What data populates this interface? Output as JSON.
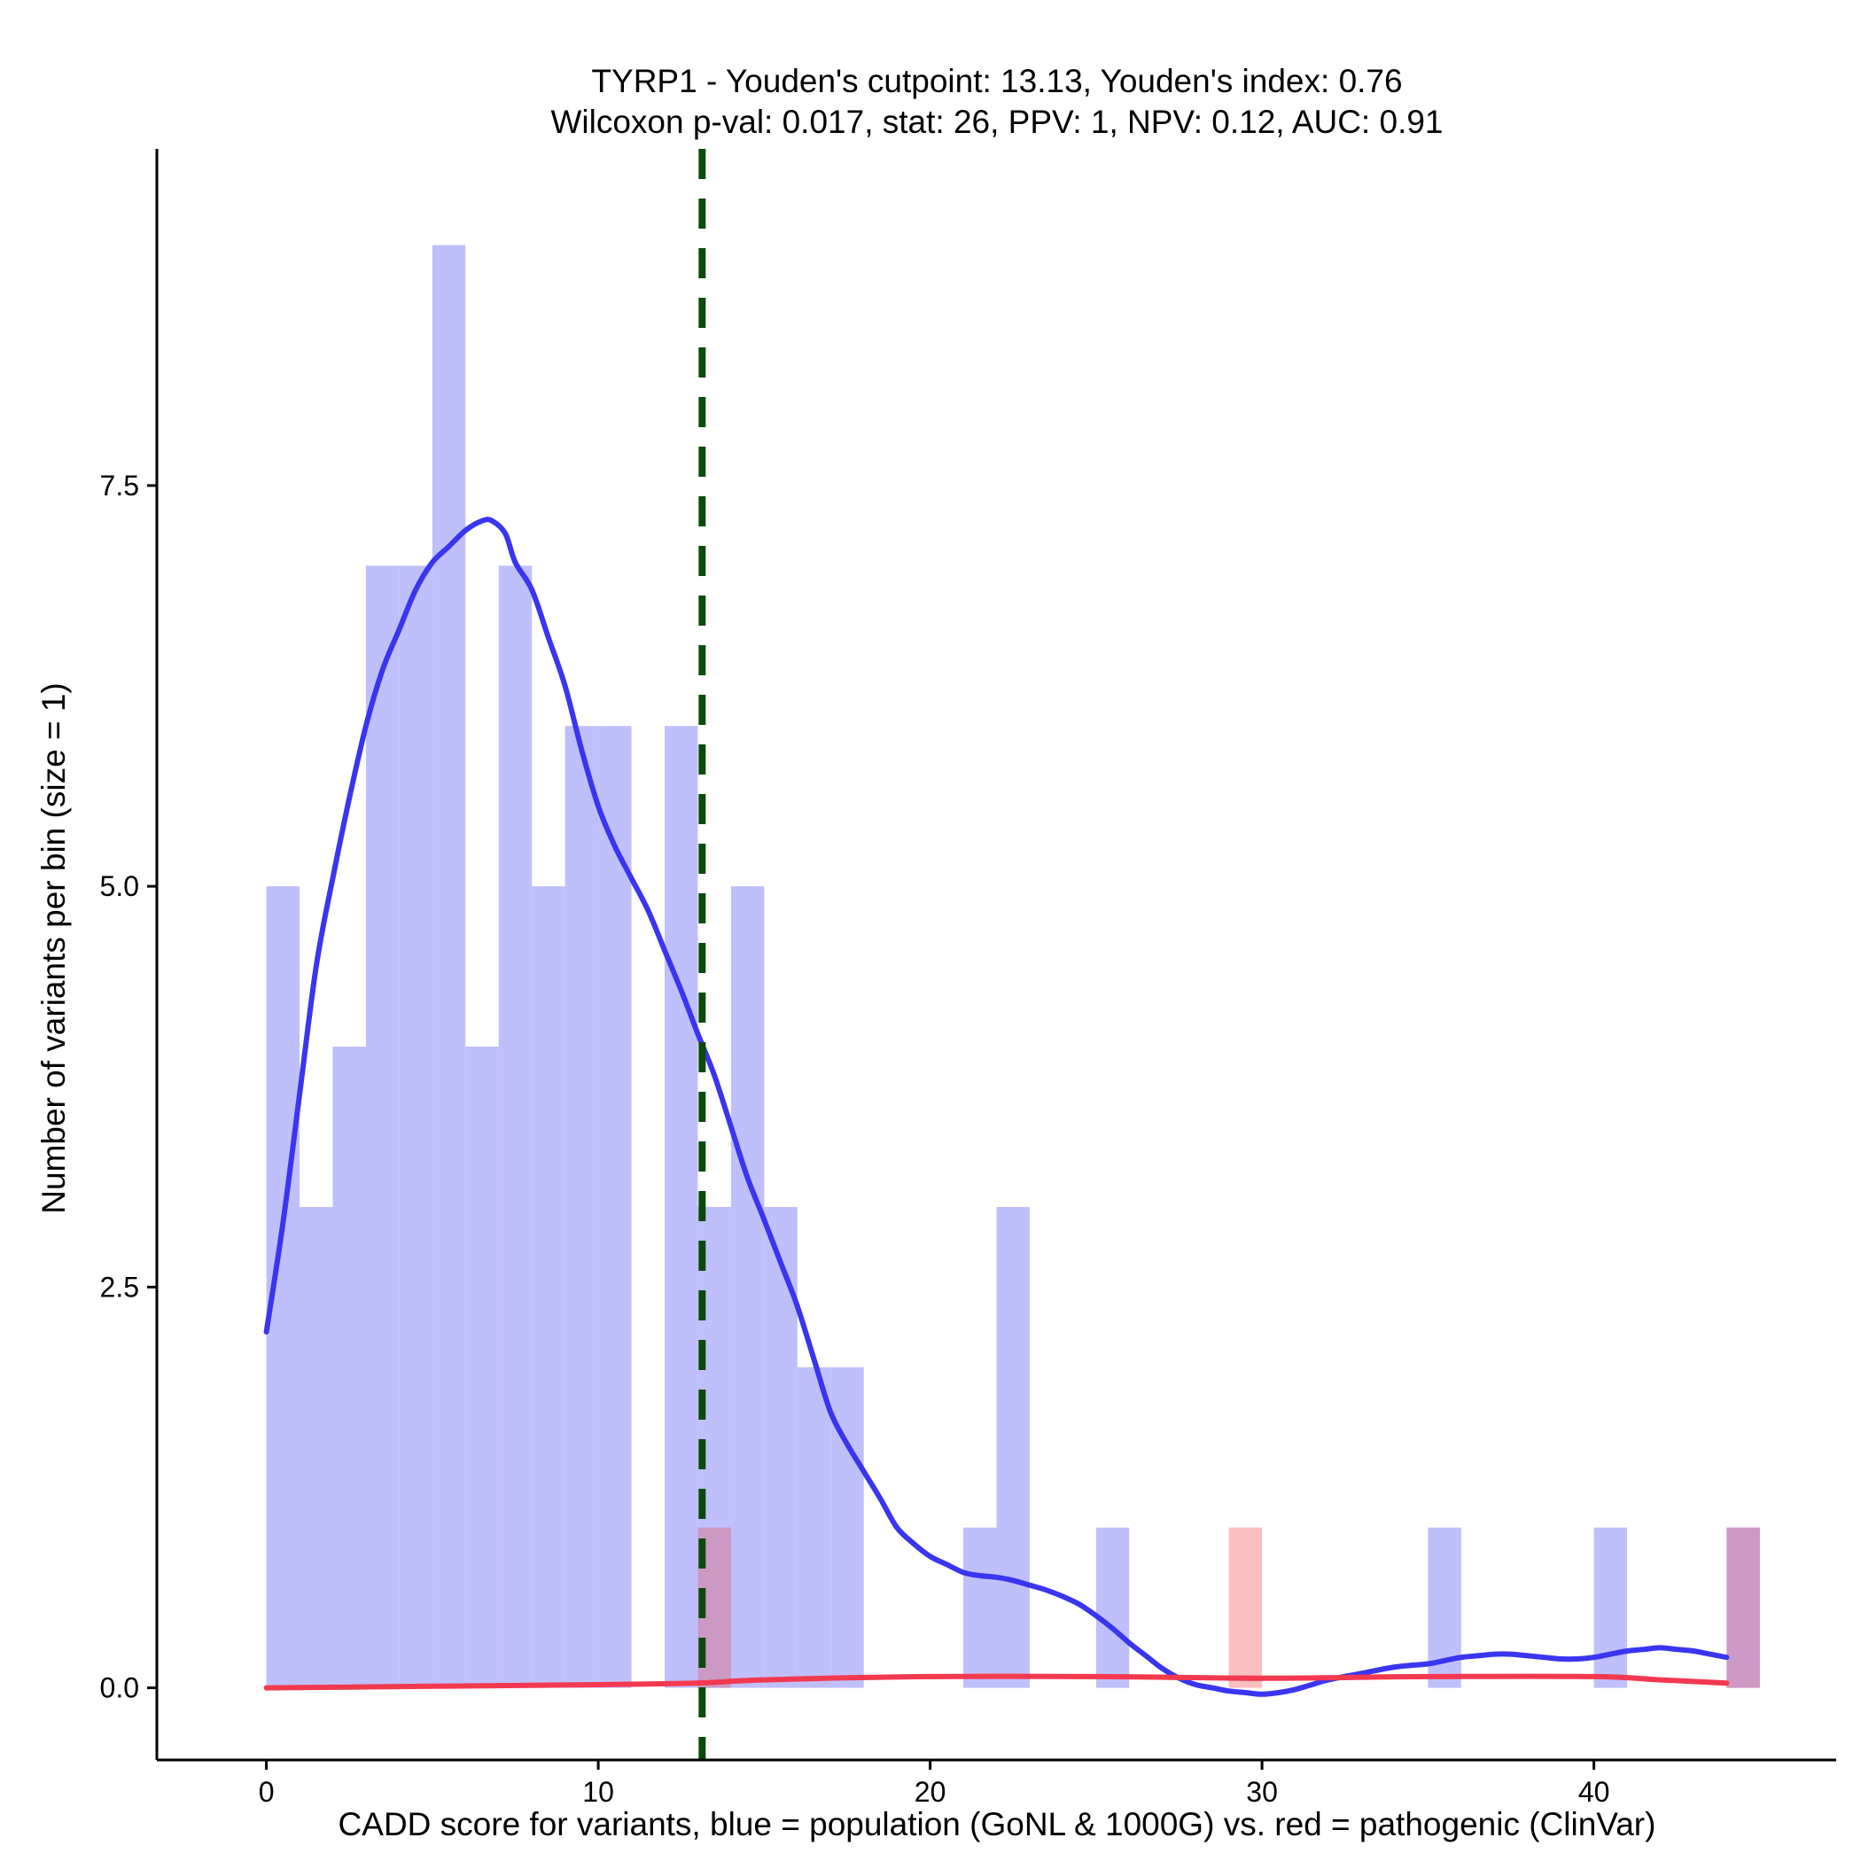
{
  "chart_data": {
    "type": "histogram",
    "title_line1": "TYRP1 - Youden's cutpoint: 13.13, Youden's index: 0.76",
    "title_line2": "Wilcoxon p-val: 0.017, stat: 26, PPV: 1, NPV: 0.12, AUC: 0.91",
    "xlabel": "CADD score for variants, blue = population (GoNL & 1000G) vs. red = pathogenic (ClinVar)",
    "ylabel": "Number of variants per bin (size = 1)",
    "xlim": [
      -3.3,
      47.3
    ],
    "ylim": [
      -0.45,
      9.6
    ],
    "x_ticks": [
      {
        "value": 0,
        "label": "0"
      },
      {
        "value": 10,
        "label": "10"
      },
      {
        "value": 20,
        "label": "20"
      },
      {
        "value": 30,
        "label": "30"
      },
      {
        "value": 40,
        "label": "40"
      }
    ],
    "y_ticks": [
      {
        "value": 0,
        "label": "0.0"
      },
      {
        "value": 2.5,
        "label": "2.5"
      },
      {
        "value": 5,
        "label": "5.0"
      },
      {
        "value": 7.5,
        "label": "7.5"
      }
    ],
    "cutpoint": 13.13,
    "colors": {
      "population_bar": "#bfbffb",
      "pathogenic_bar": "#fbbfbf",
      "overlap_bar": "#cc99c4",
      "population_density": "#3a35f0",
      "pathogenic_density": "#f2394e",
      "cutpoint_line": "#0c4a0a",
      "axis": "#000000"
    },
    "bin_width": 1,
    "population_bins": [
      {
        "x": 0,
        "count": 5
      },
      {
        "x": 1,
        "count": 3
      },
      {
        "x": 2,
        "count": 4
      },
      {
        "x": 3,
        "count": 7
      },
      {
        "x": 4,
        "count": 7
      },
      {
        "x": 5,
        "count": 9
      },
      {
        "x": 6,
        "count": 4
      },
      {
        "x": 7,
        "count": 7
      },
      {
        "x": 8,
        "count": 5
      },
      {
        "x": 9,
        "count": 6
      },
      {
        "x": 10,
        "count": 6
      },
      {
        "x": 12,
        "count": 6
      },
      {
        "x": 13,
        "count": 3
      },
      {
        "x": 14,
        "count": 5
      },
      {
        "x": 15,
        "count": 3
      },
      {
        "x": 16,
        "count": 2
      },
      {
        "x": 17,
        "count": 2
      },
      {
        "x": 21,
        "count": 1
      },
      {
        "x": 22,
        "count": 3
      },
      {
        "x": 25,
        "count": 1
      },
      {
        "x": 35,
        "count": 1
      },
      {
        "x": 40,
        "count": 1
      },
      {
        "x": 44,
        "count": 1
      }
    ],
    "pathogenic_bins": [
      {
        "x": 13,
        "count": 1
      },
      {
        "x": 29,
        "count": 1
      },
      {
        "x": 44,
        "count": 1
      }
    ],
    "population_density_curve": [
      [
        0,
        2.22
      ],
      [
        0.5,
        2.9
      ],
      [
        1,
        3.7
      ],
      [
        1.5,
        4.5
      ],
      [
        2,
        5.05
      ],
      [
        2.5,
        5.55
      ],
      [
        3,
        6.0
      ],
      [
        3.5,
        6.35
      ],
      [
        4,
        6.6
      ],
      [
        4.5,
        6.85
      ],
      [
        5,
        7.02
      ],
      [
        5.5,
        7.12
      ],
      [
        6,
        7.22
      ],
      [
        6.5,
        7.28
      ],
      [
        6.8,
        7.28
      ],
      [
        7.2,
        7.2
      ],
      [
        7.5,
        7.02
      ],
      [
        8,
        6.85
      ],
      [
        8.5,
        6.55
      ],
      [
        9,
        6.25
      ],
      [
        9.5,
        5.85
      ],
      [
        10,
        5.5
      ],
      [
        10.5,
        5.25
      ],
      [
        11,
        5.05
      ],
      [
        11.5,
        4.85
      ],
      [
        12,
        4.6
      ],
      [
        12.5,
        4.35
      ],
      [
        13,
        4.08
      ],
      [
        13.5,
        3.82
      ],
      [
        14,
        3.5
      ],
      [
        14.5,
        3.18
      ],
      [
        15,
        2.92
      ],
      [
        15.5,
        2.65
      ],
      [
        16,
        2.38
      ],
      [
        16.5,
        2.05
      ],
      [
        17,
        1.72
      ],
      [
        17.5,
        1.52
      ],
      [
        18,
        1.35
      ],
      [
        18.5,
        1.18
      ],
      [
        19,
        1.0
      ],
      [
        19.5,
        0.9
      ],
      [
        20,
        0.82
      ],
      [
        20.5,
        0.77
      ],
      [
        21,
        0.72
      ],
      [
        21.5,
        0.7
      ],
      [
        22,
        0.69
      ],
      [
        22.5,
        0.67
      ],
      [
        23,
        0.64
      ],
      [
        23.5,
        0.61
      ],
      [
        24,
        0.57
      ],
      [
        24.5,
        0.52
      ],
      [
        25,
        0.45
      ],
      [
        25.5,
        0.37
      ],
      [
        26,
        0.28
      ],
      [
        26.5,
        0.2
      ],
      [
        27,
        0.12
      ],
      [
        27.5,
        0.06
      ],
      [
        28,
        0.02
      ],
      [
        28.5,
        0.0
      ],
      [
        29,
        -0.02
      ],
      [
        29.5,
        -0.03
      ],
      [
        30,
        -0.04
      ],
      [
        30.5,
        -0.03
      ],
      [
        31,
        -0.01
      ],
      [
        31.5,
        0.02
      ],
      [
        32,
        0.05
      ],
      [
        33,
        0.09
      ],
      [
        34,
        0.13
      ],
      [
        35,
        0.15
      ],
      [
        35.5,
        0.17
      ],
      [
        36,
        0.19
      ],
      [
        36.5,
        0.2
      ],
      [
        37,
        0.21
      ],
      [
        37.5,
        0.21
      ],
      [
        38,
        0.2
      ],
      [
        38.5,
        0.19
      ],
      [
        39,
        0.18
      ],
      [
        39.5,
        0.18
      ],
      [
        40,
        0.19
      ],
      [
        40.5,
        0.21
      ],
      [
        41,
        0.23
      ],
      [
        41.5,
        0.24
      ],
      [
        42,
        0.25
      ],
      [
        42.5,
        0.24
      ],
      [
        43,
        0.23
      ],
      [
        43.5,
        0.21
      ],
      [
        44,
        0.19
      ]
    ],
    "pathogenic_density_curve": [
      [
        0,
        0.0
      ],
      [
        5,
        0.01
      ],
      [
        10,
        0.02
      ],
      [
        13,
        0.03
      ],
      [
        15,
        0.05
      ],
      [
        20,
        0.07
      ],
      [
        25,
        0.07
      ],
      [
        30,
        0.06
      ],
      [
        35,
        0.07
      ],
      [
        40,
        0.07
      ],
      [
        42,
        0.05
      ],
      [
        44,
        0.03
      ]
    ]
  }
}
